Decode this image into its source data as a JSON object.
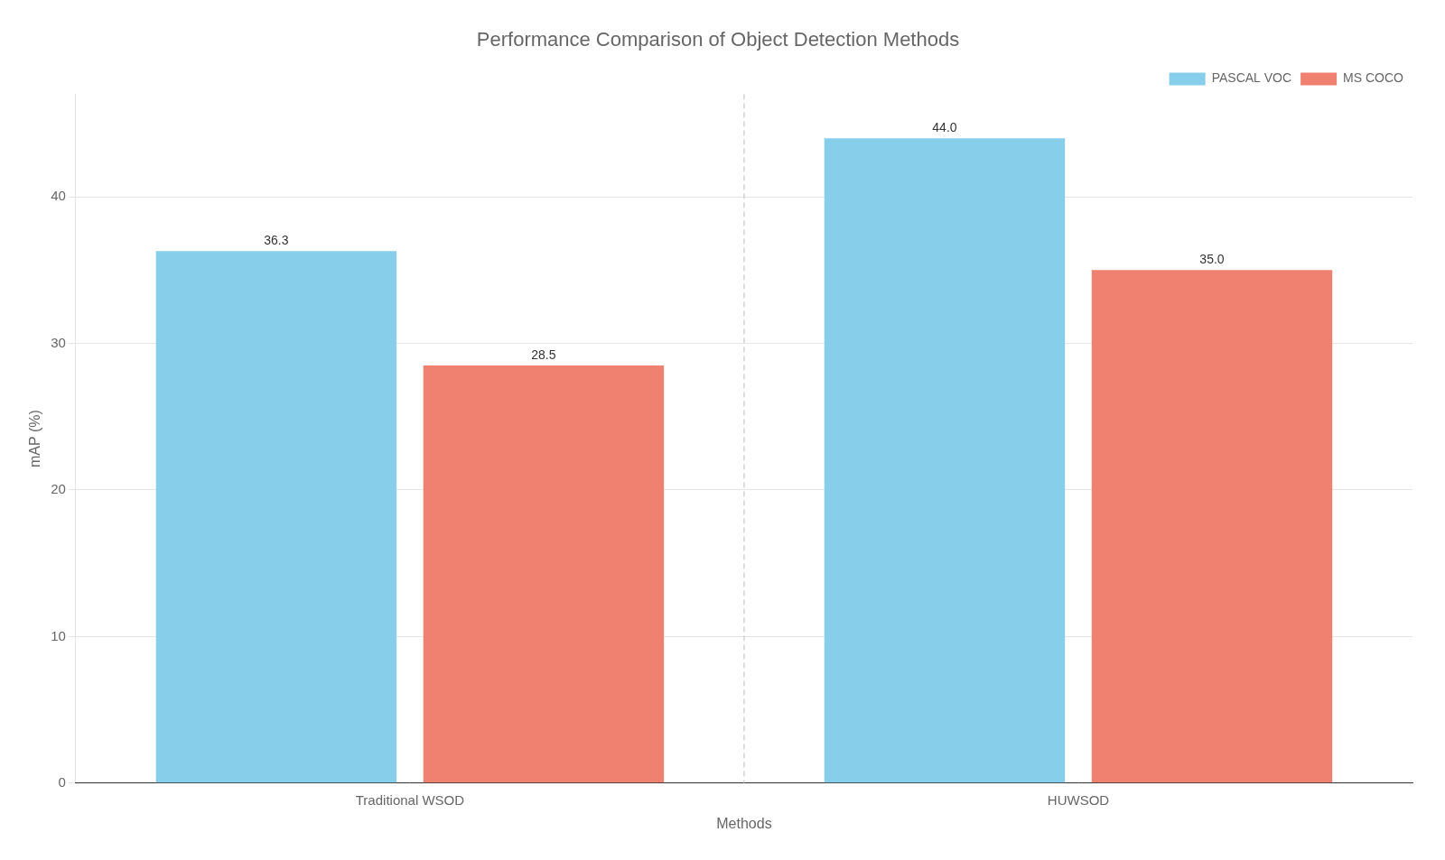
{
  "chart_data": {
    "type": "bar",
    "title": "Performance Comparison of Object Detection Methods",
    "xlabel": "Methods",
    "ylabel": "mAP (%)",
    "categories": [
      "Traditional WSOD",
      "HUWSOD"
    ],
    "series": [
      {
        "name": "PASCAL VOC",
        "color": "#87CEEB",
        "values": [
          36.3,
          44.0
        ],
        "value_labels": [
          "36.3",
          "44.0"
        ]
      },
      {
        "name": "MS COCO",
        "color": "#F08070",
        "values": [
          28.5,
          35.0
        ],
        "value_labels": [
          "28.5",
          "35.0"
        ]
      }
    ],
    "ylim": [
      0,
      47
    ],
    "yticks": [
      0,
      10,
      20,
      30,
      40
    ],
    "grid": true,
    "legend": "upper right",
    "data_labels": true
  }
}
